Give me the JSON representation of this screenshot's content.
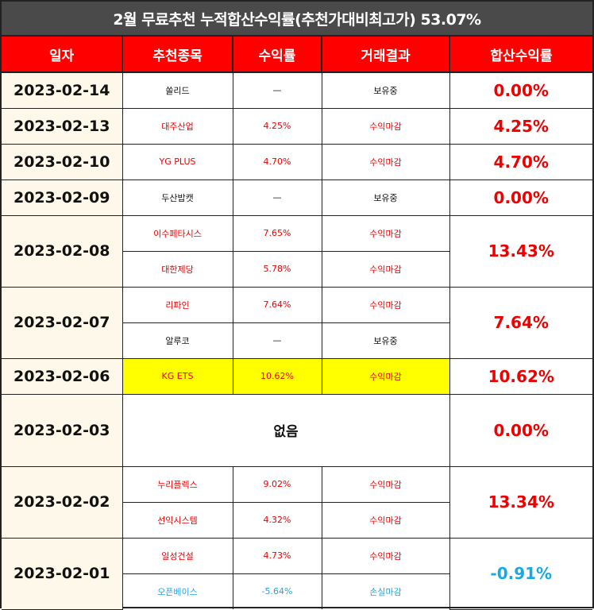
{
  "title": "2월 무료추천 누적합산수익률(추천가대비최고가) 53.07%",
  "headers": [
    "일자",
    "추천종목",
    "수익률",
    "거래결과",
    "합산수익률"
  ],
  "rows": [
    {
      "date": "2023-02-14",
      "total": "0.00%",
      "stocks": [
        {
          "name": "쏠리드",
          "ret": "—",
          "result": "보유중"
        }
      ]
    },
    {
      "date": "2023-02-13",
      "total": "4.25%",
      "stocks": [
        {
          "name": "대주산업",
          "ret": "4.25%",
          "result": "수익마감"
        }
      ]
    },
    {
      "date": "2023-02-10",
      "total": "4.70%",
      "stocks": [
        {
          "name": "YG PLUS",
          "ret": "4.70%",
          "result": "수익마감"
        }
      ]
    },
    {
      "date": "2023-02-09",
      "total": "0.00%",
      "stocks": [
        {
          "name": "두산밥캣",
          "ret": "—",
          "result": "보유중"
        }
      ]
    },
    {
      "date": "2023-02-08",
      "total": "13.43%",
      "stocks": [
        {
          "name": "이수페타시스",
          "ret": "7.65%",
          "result": "수익마감"
        },
        {
          "name": "대한제당",
          "ret": "5.78%",
          "result": "수익마감"
        }
      ]
    },
    {
      "date": "2023-02-07",
      "total": "7.64%",
      "stocks": [
        {
          "name": "리파인",
          "ret": "7.64%",
          "result": "수익마감"
        },
        {
          "name": "알루코",
          "ret": "—",
          "result": "보유중"
        }
      ]
    },
    {
      "date": "2023-02-06",
      "total": "10.62%",
      "stocks": [
        {
          "name": "KG ETS",
          "ret": "10.62%",
          "result": "수익마감"
        }
      ]
    },
    {
      "date": "2023-02-03",
      "total": "0.00%",
      "none_label": "없음"
    },
    {
      "date": "2023-02-02",
      "total": "13.34%",
      "stocks": [
        {
          "name": "누리플렉스",
          "ret": "9.02%",
          "result": "수익마감"
        },
        {
          "name": "선익시스템",
          "ret": "4.32%",
          "result": "수익마감"
        }
      ]
    },
    {
      "date": "2023-02-01",
      "total": "-0.91%",
      "stocks": [
        {
          "name": "일성건설",
          "ret": "4.73%",
          "result": "수익마감"
        },
        {
          "name": "오픈베이스",
          "ret": "-5.64%",
          "result": "손실마감"
        }
      ]
    }
  ],
  "colors": {
    "header_bg": "#ff0000",
    "title_bg": "#4a4a4a",
    "profit": "#ee0000",
    "loss": "#1ba8e0",
    "highlight": "#ffff00",
    "date_bg": "#fdf8e9"
  }
}
